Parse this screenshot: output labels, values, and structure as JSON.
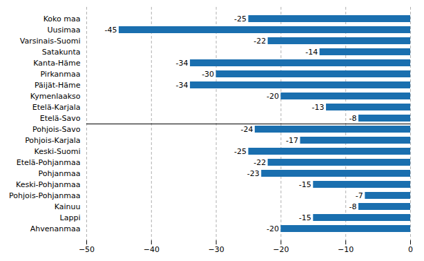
{
  "chart_data": {
    "type": "bar",
    "orientation": "horizontal",
    "categories": [
      "Ahvenanmaa",
      "Lappi",
      "Kainuu",
      "Pohjois-Pohjanmaa",
      "Keski-Pohjanmaa",
      "Pohjanmaa",
      "Etelä-Pohjanmaa",
      "Keski-Suomi",
      "Pohjois-Karjala",
      "Pohjois-Savo",
      "Etelä-Savo",
      "Etelä-Karjala",
      "Kymenlaakso",
      "Päijät-Häme",
      "Pirkanmaa",
      "Kanta-Häme",
      "Satakunta",
      "Varsinais-Suomi",
      "Uusimaa",
      "Koko maa"
    ],
    "values": [
      -20,
      -15,
      -8,
      -7,
      -15,
      -23,
      -22,
      -25,
      -17,
      -24,
      -8,
      -13,
      -20,
      -34,
      -30,
      -34,
      -14,
      -22,
      -45,
      -25
    ],
    "color": "#1a6faf",
    "xlim": [
      -50,
      0
    ],
    "xticks": [
      -50,
      -40,
      -30,
      -20,
      -10,
      0
    ],
    "grid": true,
    "data_labels": true
  }
}
